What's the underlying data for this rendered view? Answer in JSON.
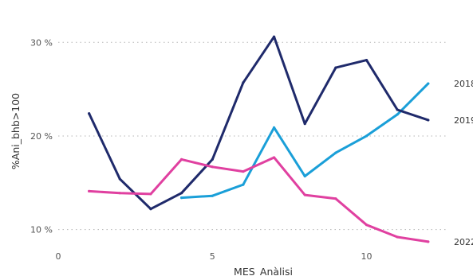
{
  "chart_data": {
    "type": "line",
    "title": "",
    "xlabel": "MES_Anàlisi",
    "ylabel": "%Ani_bhb>100",
    "xlim": [
      0,
      12.6
    ],
    "ylim": [
      0.075,
      0.33
    ],
    "x_ticks": [
      {
        "value": 0,
        "label": "0"
      },
      {
        "value": 5,
        "label": "5"
      },
      {
        "value": 10,
        "label": "10"
      }
    ],
    "y_ticks": [
      {
        "value": 0.1,
        "label": "10 %"
      },
      {
        "value": 0.2,
        "label": "20 %"
      },
      {
        "value": 0.3,
        "label": "30 %"
      }
    ],
    "grid": true,
    "legend": "end-of-line labels",
    "series": [
      {
        "name": "2018",
        "color": "#1a9fd8",
        "x": [
          4,
          5,
          6,
          7,
          8,
          9,
          10,
          11,
          12
        ],
        "y": [
          0.134,
          0.136,
          0.148,
          0.209,
          0.157,
          0.182,
          0.2,
          0.223,
          0.256
        ]
      },
      {
        "name": "2019",
        "color": "#1f2a6b",
        "x": [
          1,
          2,
          3,
          4,
          5,
          6,
          7,
          8,
          9,
          10,
          11,
          12
        ],
        "y": [
          0.224,
          0.154,
          0.122,
          0.139,
          0.175,
          0.257,
          0.306,
          0.213,
          0.273,
          0.281,
          0.228,
          0.217
        ]
      },
      {
        "name": "2022",
        "color": "#e040a0",
        "x": [
          1,
          2,
          3,
          4,
          5,
          6,
          7,
          8,
          9,
          10,
          11,
          12
        ],
        "y": [
          0.141,
          0.139,
          0.138,
          0.175,
          0.167,
          0.162,
          0.177,
          0.137,
          0.133,
          0.105,
          0.092,
          0.087
        ]
      }
    ]
  }
}
